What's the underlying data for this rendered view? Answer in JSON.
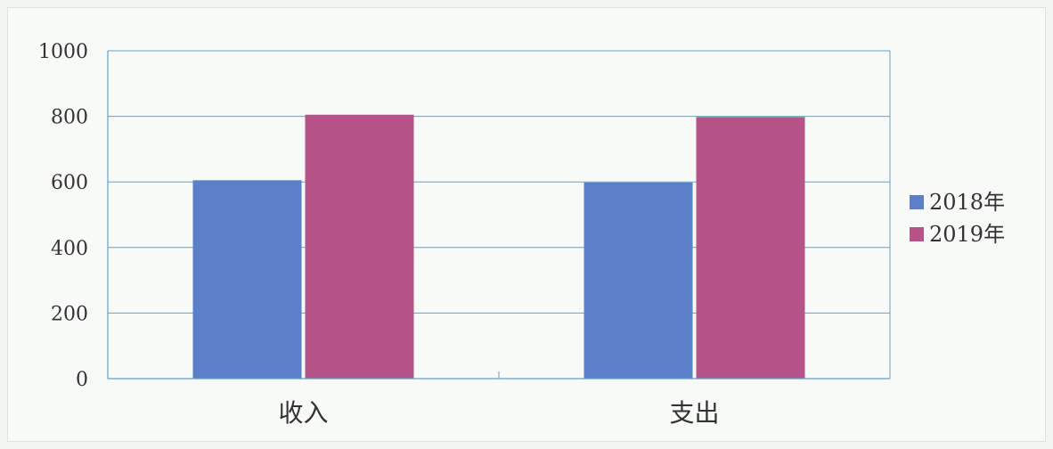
{
  "chart_data": {
    "type": "bar",
    "categories": [
      "收入",
      "支出"
    ],
    "series": [
      {
        "name": "2018年",
        "values": [
          605,
          598
        ],
        "color": "#5b7fc9"
      },
      {
        "name": "2019年",
        "values": [
          805,
          798
        ],
        "color": "#b6548a"
      }
    ],
    "yticks": [
      "0",
      "200",
      "400",
      "600",
      "800",
      "1000"
    ],
    "ylim": [
      0,
      1000
    ],
    "title": "",
    "xlabel": "",
    "ylabel": "",
    "grid": true,
    "legend": "right"
  }
}
